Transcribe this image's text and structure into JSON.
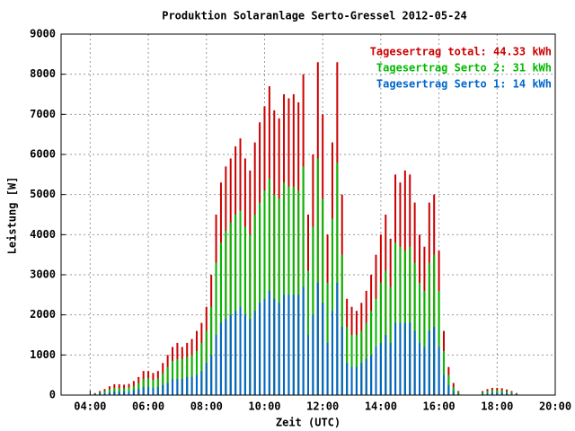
{
  "chart_data": {
    "type": "bar",
    "title": "Produktion Solaranlage Serto-Gressel 2012-05-24",
    "x_label": "Zeit (UTC)",
    "y_label": "Leistung [W]",
    "x": [
      250,
      260,
      270,
      280,
      290,
      300,
      310,
      320,
      330,
      340,
      350,
      360,
      370,
      380,
      390,
      400,
      410,
      420,
      430,
      440,
      450,
      460,
      470,
      480,
      490,
      500,
      510,
      520,
      530,
      540,
      550,
      560,
      570,
      580,
      590,
      600,
      610,
      620,
      630,
      640,
      650,
      660,
      670,
      680,
      690,
      700,
      710,
      720,
      730,
      740,
      750,
      760,
      770,
      780,
      790,
      800,
      810,
      820,
      830,
      840,
      850,
      860,
      870,
      880,
      890,
      900,
      910,
      920,
      930,
      940,
      950,
      960,
      970,
      980,
      990,
      1000,
      1050,
      1060,
      1070,
      1080,
      1090,
      1100,
      1110,
      1120
    ],
    "series": [
      {
        "name": "Tagesertrag total: 44.33 kWh",
        "color": "#cc0000",
        "values": [
          50,
          100,
          150,
          220,
          270,
          270,
          260,
          280,
          350,
          450,
          600,
          600,
          550,
          600,
          800,
          1000,
          1200,
          1300,
          1200,
          1300,
          1400,
          1600,
          1800,
          2200,
          3000,
          4500,
          5300,
          5700,
          5900,
          6200,
          6400,
          5900,
          5600,
          6300,
          6800,
          7200,
          7700,
          7100,
          6900,
          7500,
          7400,
          7500,
          7300,
          8000,
          4500,
          6000,
          8300,
          7000,
          4000,
          6300,
          8300,
          5000,
          2400,
          2200,
          2100,
          2300,
          2600,
          3000,
          3500,
          4000,
          4500,
          3900,
          5500,
          5300,
          5600,
          5500,
          4800,
          4000,
          3700,
          4800,
          5000,
          3600,
          1600,
          700,
          300,
          100,
          100,
          150,
          180,
          180,
          170,
          140,
          100,
          50
        ]
      },
      {
        "name": "Tagesertrag Serto 2: 31 kWh",
        "color": "#00bb00",
        "values": [
          30,
          60,
          100,
          150,
          180,
          180,
          170,
          190,
          230,
          300,
          400,
          420,
          380,
          420,
          550,
          700,
          850,
          900,
          900,
          950,
          1000,
          1100,
          1300,
          1600,
          2200,
          3300,
          3800,
          4100,
          4300,
          4500,
          4600,
          4200,
          4000,
          4500,
          4800,
          5100,
          5400,
          5000,
          4900,
          5300,
          5200,
          5200,
          5100,
          5700,
          3100,
          4200,
          5900,
          4900,
          2800,
          4400,
          5800,
          3500,
          1700,
          1500,
          1500,
          1600,
          1800,
          2100,
          2400,
          2800,
          3100,
          2700,
          3800,
          3700,
          3600,
          3700,
          3300,
          2800,
          2600,
          3300,
          3500,
          2600,
          1100,
          500,
          200,
          70,
          70,
          100,
          120,
          120,
          110,
          90,
          70,
          30
        ]
      },
      {
        "name": "Tagesertrag Serto 1: 14 kWh",
        "color": "#0066cc",
        "values": [
          20,
          40,
          50,
          70,
          90,
          90,
          90,
          90,
          120,
          150,
          200,
          200,
          180,
          200,
          250,
          300,
          400,
          400,
          400,
          450,
          450,
          500,
          600,
          800,
          1000,
          1500,
          1800,
          1900,
          2000,
          2100,
          2200,
          2000,
          1900,
          2100,
          2300,
          2400,
          2600,
          2400,
          2300,
          2500,
          2500,
          2500,
          2500,
          2700,
          1500,
          2000,
          2800,
          2300,
          1300,
          2100,
          2800,
          1700,
          800,
          700,
          700,
          800,
          900,
          1000,
          1200,
          1300,
          1500,
          1300,
          1800,
          1800,
          1800,
          1800,
          1600,
          1300,
          1200,
          1600,
          1700,
          1200,
          500,
          250,
          100,
          30,
          30,
          50,
          60,
          60,
          60,
          50,
          30,
          20
        ]
      }
    ],
    "xlim": [
      180,
      1200
    ],
    "xticks": [
      {
        "value": 240,
        "label": "04:00"
      },
      {
        "value": 360,
        "label": "06:00"
      },
      {
        "value": 480,
        "label": "08:00"
      },
      {
        "value": 600,
        "label": "10:00"
      },
      {
        "value": 720,
        "label": "12:00"
      },
      {
        "value": 840,
        "label": "14:00"
      },
      {
        "value": 960,
        "label": "16:00"
      },
      {
        "value": 1080,
        "label": "18:00"
      },
      {
        "value": 1200,
        "label": "20:00"
      }
    ],
    "ylim": [
      0,
      9000
    ],
    "yticks": [
      0,
      1000,
      2000,
      3000,
      4000,
      5000,
      6000,
      7000,
      8000,
      9000
    ],
    "grid": true,
    "legend": "top-right"
  }
}
